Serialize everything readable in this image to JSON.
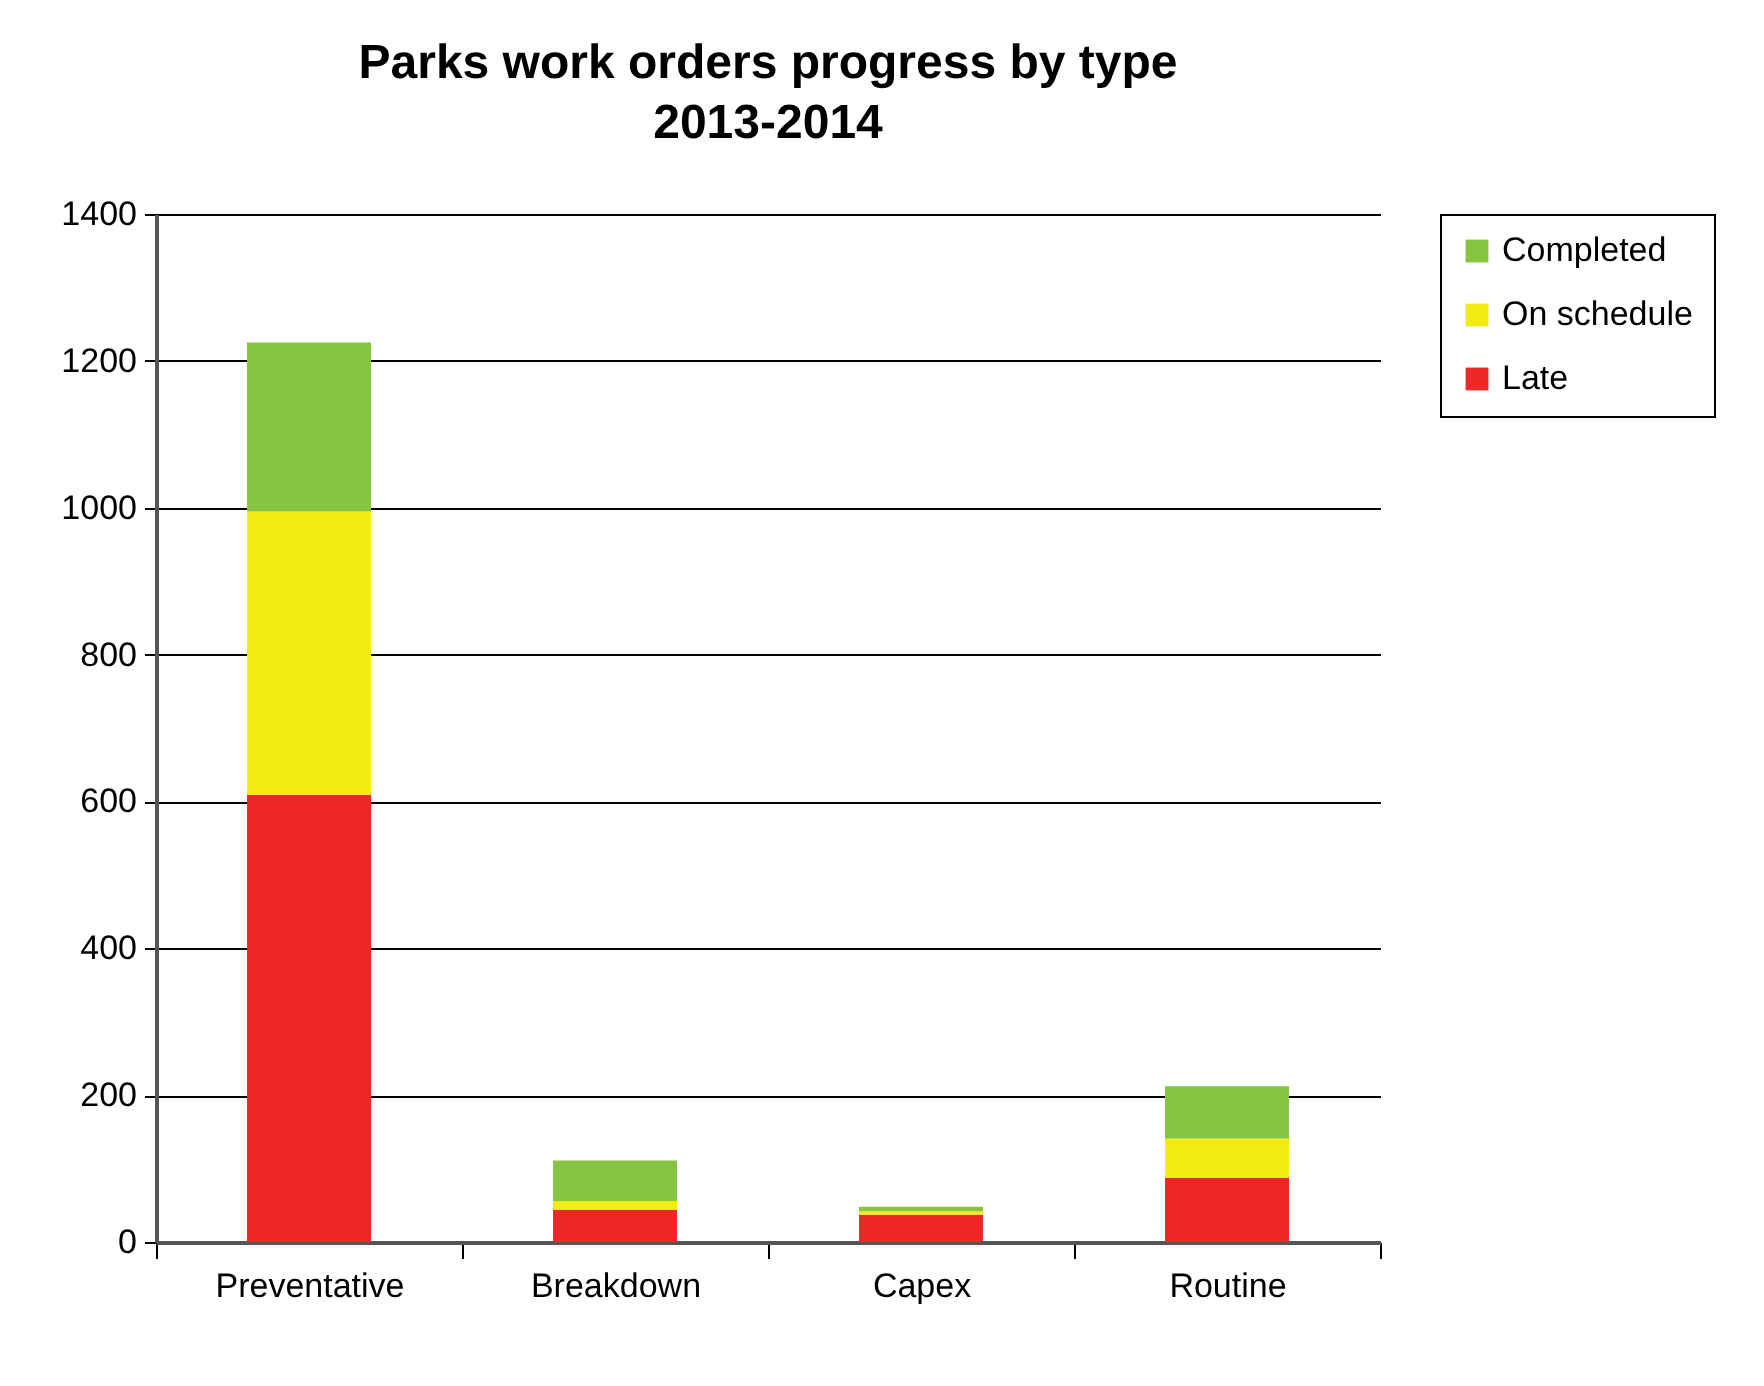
{
  "chart_data": {
    "type": "bar",
    "title": [
      "Parks work orders progress by type",
      "2013-2014"
    ],
    "categories": [
      "Preventative",
      "Breakdown",
      "Capex",
      "Routine"
    ],
    "stacked": true,
    "series": [
      {
        "name": "Late",
        "color": "#ed2626",
        "values": [
          609,
          44,
          37,
          87
        ]
      },
      {
        "name": "On schedule",
        "color": "#f4ea14",
        "values": [
          386,
          12,
          5,
          54
        ]
      },
      {
        "name": "Completed",
        "color": "#86c442",
        "values": [
          230,
          55,
          6,
          71
        ]
      }
    ],
    "ylim": [
      0,
      1400
    ],
    "yticks": [
      0,
      200,
      400,
      600,
      800,
      1000,
      1200,
      1400
    ],
    "grid": "y",
    "legend": "right"
  }
}
